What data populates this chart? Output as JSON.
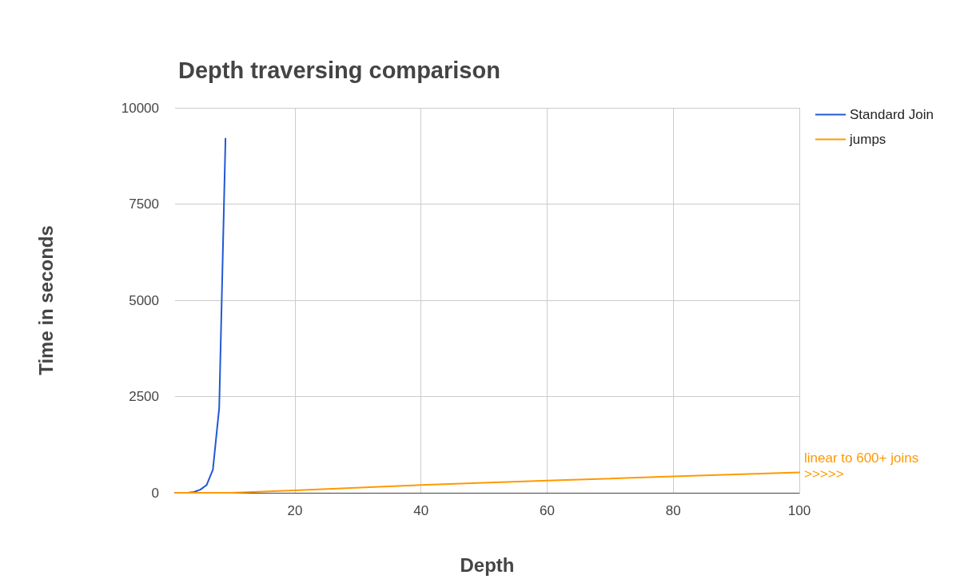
{
  "chart_data": {
    "type": "line",
    "title": "Depth traversing comparison",
    "xlabel": "Depth",
    "ylabel": "Time in seconds",
    "xlim": [
      1,
      100
    ],
    "xticks": [
      20,
      40,
      60,
      80,
      100
    ],
    "ylim": [
      0,
      10000
    ],
    "yticks": [
      0,
      2500,
      5000,
      7500,
      10000
    ],
    "series": [
      {
        "name": "Standard Join",
        "color": "#2258d6",
        "x": [
          1,
          2,
          3,
          4,
          5,
          6,
          7,
          8,
          9
        ],
        "values": [
          0,
          0,
          0,
          20,
          80,
          200,
          600,
          2200,
          9200
        ]
      },
      {
        "name": "jumps",
        "color": "#ff9900",
        "x": [
          1,
          10,
          20,
          40,
          60,
          80,
          100
        ],
        "values": [
          0,
          0,
          60,
          200,
          315,
          425,
          530
        ]
      }
    ],
    "annotations": [
      {
        "text": "linear to 600+ joins\n>>>>>",
        "x": 100,
        "y": 530
      }
    ],
    "grid": true,
    "legend": "right",
    "marker": "none",
    "line_style": "solid"
  }
}
